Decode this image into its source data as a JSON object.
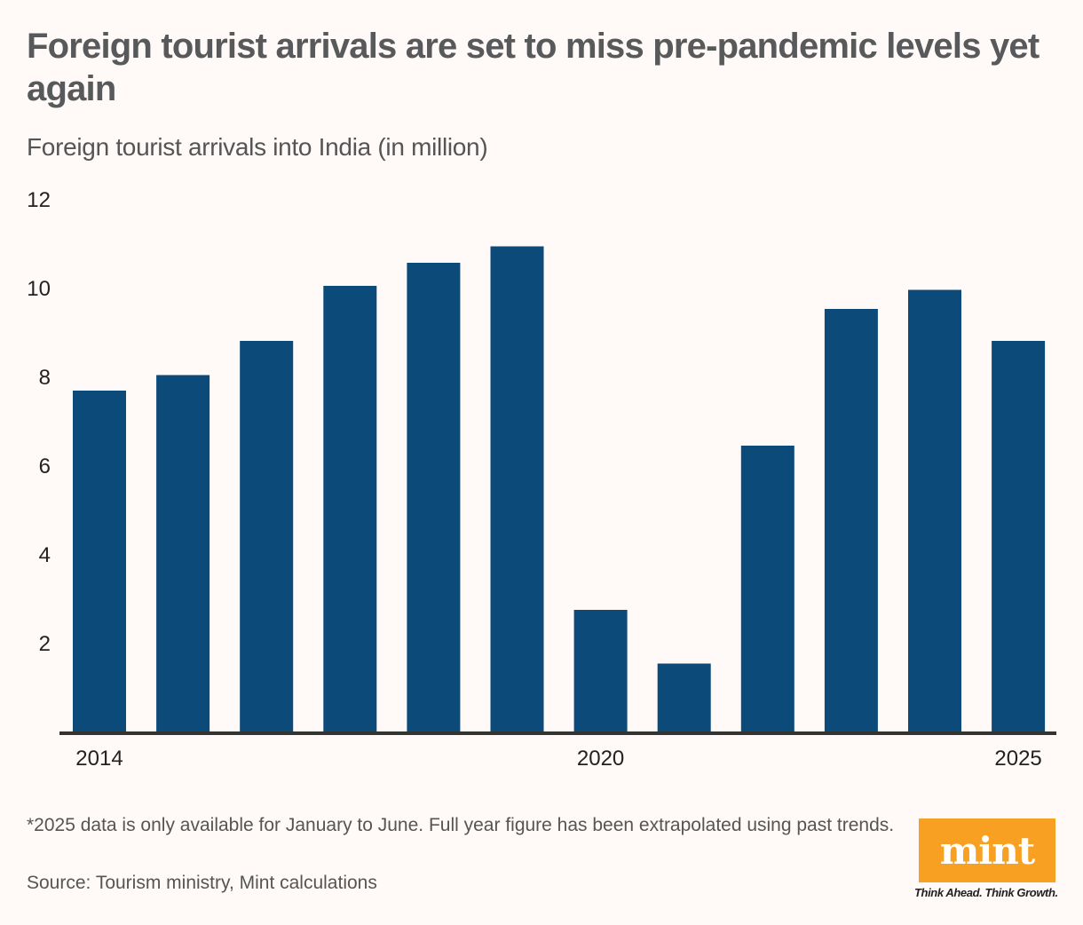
{
  "header": {
    "title": "Foreign tourist arrivals are set to miss pre-pandemic levels yet again",
    "subtitle": "Foreign tourist arrivals into India (in million)"
  },
  "chart_data": {
    "type": "bar",
    "title": "Foreign tourist arrivals are set to miss pre-pandemic levels yet again",
    "subtitle": "Foreign tourist arrivals into India (in million)",
    "xlabel": "",
    "ylabel": "",
    "categories": [
      "2014",
      "2015",
      "2016",
      "2017",
      "2018",
      "2019",
      "2020",
      "2021",
      "2022",
      "2023",
      "2024",
      "2025"
    ],
    "values": [
      7.68,
      8.03,
      8.8,
      10.04,
      10.56,
      10.93,
      2.74,
      1.53,
      6.44,
      9.52,
      9.95,
      8.8
    ],
    "x_tick_labels": [
      "2014",
      "2020",
      "2025"
    ],
    "y_ticks": [
      2,
      4,
      6,
      8,
      10,
      12
    ],
    "ylim": [
      0,
      12
    ],
    "grid": false,
    "legend": "none",
    "bar_color": "#0c4a7a"
  },
  "footer": {
    "note": "*2025 data is only available for January to June. Full year figure has been extrapolated using past trends.",
    "source": "Source: Tourism ministry, Mint calculations"
  },
  "branding": {
    "logo_text": "mint",
    "tagline": "Think Ahead. Think Growth.",
    "logo_color": "#f7a022"
  }
}
